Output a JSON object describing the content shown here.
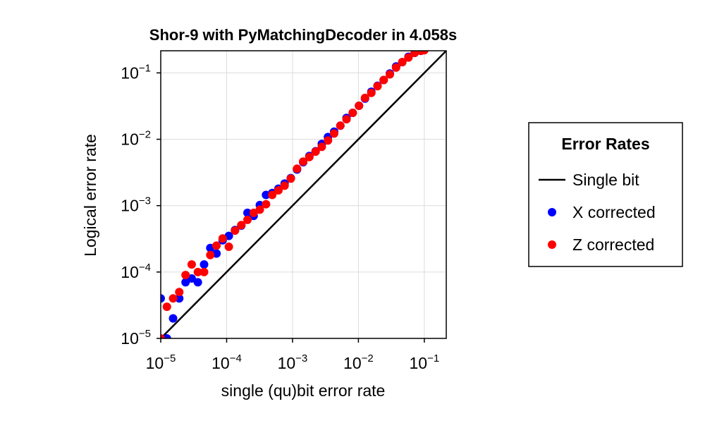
{
  "chart_data": {
    "type": "scatter",
    "title": "Shor-9 with PyMatchingDecoder in 4.058s",
    "xlabel": "single (qu)bit error rate",
    "ylabel": "Logical error rate",
    "x_scale": "log10",
    "y_scale": "log10",
    "xlim": [
      1e-05,
      0.2154
    ],
    "ylim": [
      1e-05,
      0.2154
    ],
    "x_ticks": [
      {
        "value": 1e-05,
        "base": "10",
        "exp": "−5"
      },
      {
        "value": 0.0001,
        "base": "10",
        "exp": "−4"
      },
      {
        "value": 0.001,
        "base": "10",
        "exp": "−3"
      },
      {
        "value": 0.01,
        "base": "10",
        "exp": "−2"
      },
      {
        "value": 0.1,
        "base": "10",
        "exp": "−1"
      }
    ],
    "y_ticks": [
      {
        "value": 1e-05,
        "base": "10",
        "exp": "−5"
      },
      {
        "value": 0.0001,
        "base": "10",
        "exp": "−4"
      },
      {
        "value": 0.001,
        "base": "10",
        "exp": "−3"
      },
      {
        "value": 0.01,
        "base": "10",
        "exp": "−2"
      },
      {
        "value": 0.1,
        "base": "10",
        "exp": "−1"
      }
    ],
    "grid": true,
    "legend": {
      "title": "Error Rates",
      "placement": "right"
    },
    "series": [
      {
        "name": "Single bit",
        "kind": "line",
        "color": "#000000",
        "x": [
          1e-05,
          0.2154
        ],
        "y": [
          1e-05,
          0.2154
        ]
      },
      {
        "name": "X corrected",
        "kind": "scatter",
        "color": "#0000ff",
        "x": [
          1e-05,
          1.24e-05,
          1.54e-05,
          1.91e-05,
          2.38e-05,
          2.95e-05,
          3.66e-05,
          4.55e-05,
          5.65e-05,
          7.02e-05,
          8.7e-05,
          0.000108,
          0.000134,
          0.000167,
          0.000207,
          0.000257,
          0.000319,
          0.000396,
          0.000492,
          0.000611,
          0.000758,
          0.000941,
          0.00117,
          0.00145,
          0.0018,
          0.00224,
          0.00278,
          0.00345,
          0.00428,
          0.00532,
          0.0066,
          0.0082,
          0.0102,
          0.0126,
          0.0157,
          0.0195,
          0.0242,
          0.03,
          0.0373,
          0.0463,
          0.0575,
          0.0714,
          0.0886,
          0.1
        ],
        "y": [
          4e-05,
          1e-05,
          2e-05,
          4e-05,
          7e-05,
          8e-05,
          7e-05,
          0.00013,
          0.00023,
          0.00019,
          0.0003,
          0.00035,
          0.00043,
          0.0005,
          0.00078,
          0.0007,
          0.00102,
          0.00145,
          0.00155,
          0.0018,
          0.00215,
          0.0026,
          0.0035,
          0.0045,
          0.0056,
          0.0066,
          0.0085,
          0.0108,
          0.013,
          0.016,
          0.021,
          0.025,
          0.032,
          0.041,
          0.052,
          0.064,
          0.078,
          0.098,
          0.125,
          0.145,
          0.175,
          0.2,
          0.215,
          0.22
        ]
      },
      {
        "name": "Z corrected",
        "kind": "scatter",
        "color": "#ff0000",
        "x": [
          1e-05,
          1.24e-05,
          1.54e-05,
          1.91e-05,
          2.38e-05,
          2.95e-05,
          3.66e-05,
          4.55e-05,
          5.65e-05,
          7.02e-05,
          8.7e-05,
          0.000108,
          0.000134,
          0.000167,
          0.000207,
          0.000257,
          0.000319,
          0.000396,
          0.000492,
          0.000611,
          0.000758,
          0.000941,
          0.00117,
          0.00145,
          0.0018,
          0.00224,
          0.00278,
          0.00345,
          0.00428,
          0.00532,
          0.0066,
          0.0082,
          0.0102,
          0.0126,
          0.0157,
          0.0195,
          0.0242,
          0.03,
          0.0373,
          0.0463,
          0.0575,
          0.0714,
          0.0886,
          0.1
        ],
        "y": [
          1e-05,
          3e-05,
          4e-05,
          5e-05,
          9e-05,
          0.00013,
          0.0001,
          0.0001,
          0.00018,
          0.00025,
          0.00032,
          0.00024,
          0.00042,
          0.00051,
          0.00061,
          0.00078,
          0.00087,
          0.00105,
          0.00145,
          0.0017,
          0.002,
          0.00255,
          0.0036,
          0.0046,
          0.0054,
          0.0065,
          0.0077,
          0.0096,
          0.0122,
          0.016,
          0.02,
          0.025,
          0.032,
          0.042,
          0.05,
          0.063,
          0.078,
          0.095,
          0.12,
          0.145,
          0.17,
          0.2,
          0.215,
          0.22
        ]
      }
    ]
  }
}
